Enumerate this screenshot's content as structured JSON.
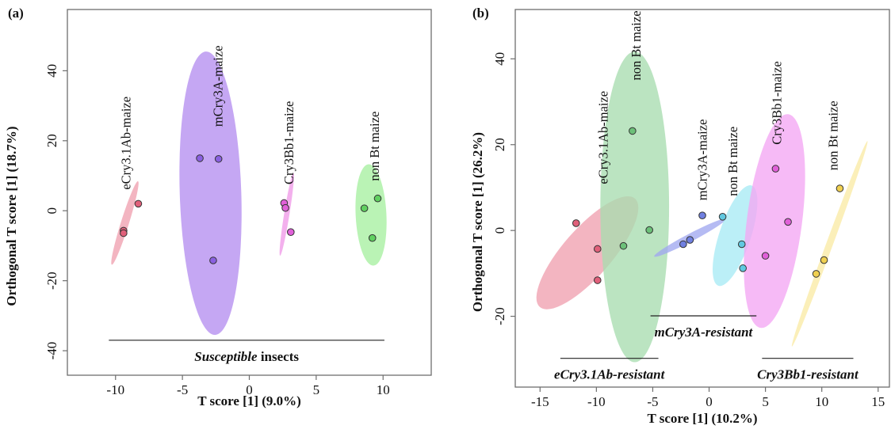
{
  "chart_data": [
    {
      "type": "scatter",
      "panel_label": "(a)",
      "xlabel": "T score [1] (9.0%)",
      "ylabel": "Orthogonal T score [1] (18.7%)",
      "xlim": [
        -13.6,
        13.6
      ],
      "ylim": [
        -47,
        57.5
      ],
      "xticks": [
        -10,
        -5,
        0,
        5,
        10
      ],
      "yticks": [
        -40,
        -20,
        0,
        20,
        40
      ],
      "groups": [
        {
          "label": "eCry3.1Ab-maize",
          "color": "#f0a0b0",
          "marker_color": "#e0607a",
          "points": [
            {
              "x": -8.3,
              "y": 2
            },
            {
              "x": -9.4,
              "y": -5.7
            },
            {
              "x": -9.4,
              "y": -6.4
            }
          ],
          "ellipse": {
            "cx": -9.3,
            "cy": -3.5,
            "rx": 0.3,
            "ry": 12.5,
            "angle": 0.19
          }
        },
        {
          "label": "mCry3A-maize",
          "color": "#b58ef0",
          "marker_color": "#8a60e0",
          "points": [
            {
              "x": -3.7,
              "y": 15
            },
            {
              "x": -2.3,
              "y": 14.8
            },
            {
              "x": -2.7,
              "y": -14.2
            }
          ],
          "ellipse": {
            "cx": -2.9,
            "cy": 5,
            "rx": 2.3,
            "ry": 40.5,
            "angle": -0.02
          }
        },
        {
          "label": "Cry3Bb1-maize",
          "color": "#f09ae8",
          "marker_color": "#e060d8",
          "points": [
            {
              "x": 2.6,
              "y": 2.2
            },
            {
              "x": 2.7,
              "y": 0.8
            },
            {
              "x": 3.1,
              "y": -6.1
            }
          ],
          "ellipse": {
            "cx": 2.8,
            "cy": -1,
            "rx": 0.2,
            "ry": 12,
            "angle": 0.1
          }
        },
        {
          "label": "non Bt maize",
          "color": "#a6f0a0",
          "marker_color": "#60d060",
          "points": [
            {
              "x": 8.6,
              "y": 0.7
            },
            {
              "x": 9.6,
              "y": 3.5
            },
            {
              "x": 9.2,
              "y": -7.8
            }
          ],
          "ellipse": {
            "cx": 9.1,
            "cy": -1.2,
            "rx": 1.15,
            "ry": 14.5,
            "angle": -0.03
          }
        }
      ],
      "brackets": [
        {
          "label_italic": "Susceptible",
          "label_rest": " insects",
          "x_range": [
            -10.5,
            10.1
          ],
          "y": -37
        }
      ]
    },
    {
      "type": "scatter",
      "panel_label": "(b)",
      "xlabel": "T score [1] (10.2%)",
      "ylabel": "Orthogonal T score [1] (26.2%)",
      "xlim": [
        -17.2,
        16
      ],
      "ylim": [
        -36.5,
        51.5
      ],
      "xticks": [
        -15,
        -10,
        -5,
        0,
        5,
        10,
        15
      ],
      "yticks": [
        -20,
        0,
        20,
        40
      ],
      "groups": [
        {
          "label": "eCry3.1Ab-maize",
          "color": "#f0a0b0",
          "marker_color": "#e0607a",
          "points": [
            {
              "x": -11.8,
              "y": 1.7
            },
            {
              "x": -9.9,
              "y": -4.3
            },
            {
              "x": -9.9,
              "y": -11.6
            }
          ],
          "ellipse": {
            "cx": -10.8,
            "cy": -5.2,
            "rx": 2.15,
            "ry": 16.8,
            "angle": 0.45
          }
        },
        {
          "label": "non Bt maize",
          "color": "#a8dcb0",
          "marker_color": "#6cc079",
          "points": [
            {
              "x": -6.8,
              "y": 23.2
            },
            {
              "x": -7.6,
              "y": -3.6
            },
            {
              "x": -5.3,
              "y": 0.1
            }
          ],
          "ellipse": {
            "cx": -6.6,
            "cy": 5.5,
            "rx": 3.05,
            "ry": 36.2,
            "angle": 0
          }
        },
        {
          "label": "mCry3A-maize",
          "color": "#a0a8f0",
          "marker_color": "#7080e0",
          "points": [
            {
              "x": -2.3,
              "y": -3.2
            },
            {
              "x": -1.7,
              "y": -2.2
            },
            {
              "x": -0.6,
              "y": 3.5
            }
          ],
          "ellipse": {
            "cx": -1.7,
            "cy": -1.7,
            "rx": 0.35,
            "ry": 9.4,
            "angle": 0.68
          }
        },
        {
          "label": "non Bt maize",
          "color": "#a8eaf5",
          "marker_color": "#60c8e0",
          "points": [
            {
              "x": 1.2,
              "y": 3.2
            },
            {
              "x": 2.9,
              "y": -3.2
            },
            {
              "x": 3.0,
              "y": -8.8
            }
          ],
          "ellipse": {
            "cx": 2.3,
            "cy": -1.2,
            "rx": 1.4,
            "ry": 12.3,
            "angle": 0.2
          }
        },
        {
          "label": "Cry3Bb1-maize",
          "color": "#f3a6f3",
          "marker_color": "#e060d8",
          "points": [
            {
              "x": 5.9,
              "y": 14.4
            },
            {
              "x": 7.0,
              "y": 2.0
            },
            {
              "x": 5.0,
              "y": -5.9
            }
          ],
          "ellipse": {
            "cx": 5.8,
            "cy": 2.2,
            "rx": 2.45,
            "ry": 25.1,
            "angle": 0.08
          }
        },
        {
          "label": "non Bt maize",
          "color": "#faeaa5",
          "marker_color": "#f0d050",
          "points": [
            {
              "x": 11.6,
              "y": 9.8
            },
            {
              "x": 10.2,
              "y": -6.9
            },
            {
              "x": 9.5,
              "y": -10.1
            }
          ],
          "ellipse": {
            "cx": 10.7,
            "cy": -3.1,
            "rx": 0.3,
            "ry": 25.5,
            "angle": 0.22
          }
        }
      ],
      "brackets": [
        {
          "label_italic": "eCry3.1Ab-resistant",
          "label_rest": "",
          "x_range": [
            -13.2,
            -4.5
          ],
          "y": -29.8,
          "label_below": true
        },
        {
          "label_italic": "mCry3A-resistant",
          "label_rest": "",
          "x_range": [
            -5.2,
            4.2
          ],
          "y": -19.9,
          "label_below": true
        },
        {
          "label_italic": "Cry3Bb1-resistant",
          "label_rest": "",
          "x_range": [
            4.7,
            12.8
          ],
          "y": -29.8,
          "label_below": true
        }
      ]
    }
  ]
}
